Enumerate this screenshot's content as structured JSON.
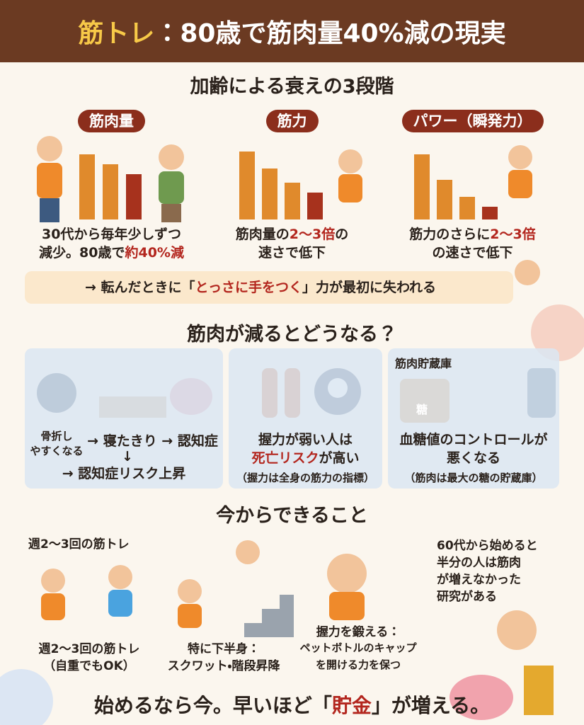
{
  "header": {
    "title_accent": "筋トレ",
    "title_rest": "：80歳で筋肉量40%減の現実"
  },
  "stages": {
    "heading": "加齢による衰えの3段階",
    "cards": [
      {
        "label": "筋肉量",
        "line1": "30代から毎年少しずつ",
        "line2": "減少。80歳で",
        "emphasis": "約40%減",
        "after": ""
      },
      {
        "label": "筋力",
        "line1": "筋肉量の",
        "emphasis": "2〜3倍",
        "after": "の",
        "line2": "速さで低下"
      },
      {
        "label": "パワー（瞬発力）",
        "line1": "筋力のさらに",
        "emphasis": "2〜3倍",
        "after": "",
        "line2": "の速さで低下"
      }
    ],
    "banner": {
      "before": "→ 転んだときに「",
      "emphasis": "とっさに手をつく",
      "after": "」力が最初に失われる"
    }
  },
  "effects": {
    "heading": "筋肉が減るとどうなる？",
    "cards": [
      {
        "line1": "骨折し",
        "line2": "やすくなる",
        "chain1": "→ 寝たきり → 認知症",
        "arrow": "↓",
        "chain2": "→ 認知症リスク上昇"
      },
      {
        "line1": "握力が弱い人は",
        "emphasis": "死亡リスク",
        "after": "が高い",
        "note": "（握力は全身の筋力の指標）"
      },
      {
        "label": "筋肉貯蔵庫",
        "jar": "糖",
        "line1": "血糖値のコントロールが",
        "line2": "悪くなる",
        "note": "（筋肉は最大の糖の貯蔵庫）"
      }
    ]
  },
  "actions": {
    "heading": "今からできること",
    "cards": [
      {
        "top": "週2〜3回の筋トレ",
        "line1": "週2〜3回の筋トレ",
        "line2": "（自重でもOK）"
      },
      {
        "line1": "特に下半身：",
        "line2": "スクワット・階段昇降"
      },
      {
        "line1": "握力を鍛える：",
        "line2": "ペットボトルのキャップ",
        "line3": "を開ける力を保つ"
      },
      {
        "line1": "60代から始めると",
        "line2": "半分の人は筋肉",
        "line3": "が増えなかった",
        "line4": "研究がある"
      }
    ]
  },
  "footer": {
    "before": "始めるなら今。早いほど「",
    "emphasis": "貯金",
    "after": "」が増える。"
  }
}
